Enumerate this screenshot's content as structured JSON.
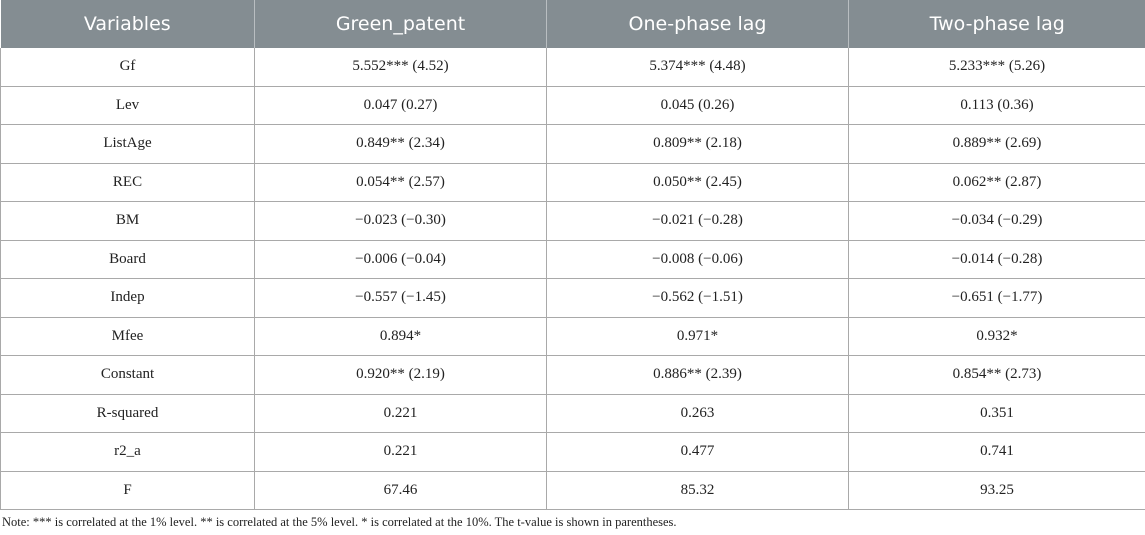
{
  "table": {
    "headers": [
      "Variables",
      "Green_patent",
      "One-phase lag",
      "Two-phase lag"
    ],
    "rows": [
      [
        "Gf",
        "5.552*** (4.52)",
        "5.374*** (4.48)",
        "5.233*** (5.26)"
      ],
      [
        "Lev",
        "0.047 (0.27)",
        "0.045 (0.26)",
        "0.113 (0.36)"
      ],
      [
        "ListAge",
        "0.849** (2.34)",
        "0.809** (2.18)",
        "0.889** (2.69)"
      ],
      [
        "REC",
        "0.054** (2.57)",
        "0.050** (2.45)",
        "0.062** (2.87)"
      ],
      [
        "BM",
        "−0.023 (−0.30)",
        "−0.021 (−0.28)",
        "−0.034 (−0.29)"
      ],
      [
        "Board",
        "−0.006 (−0.04)",
        "−0.008 (−0.06)",
        "−0.014 (−0.28)"
      ],
      [
        "Indep",
        "−0.557 (−1.45)",
        "−0.562 (−1.51)",
        "−0.651 (−1.77)"
      ],
      [
        "Mfee",
        "0.894*",
        "0.971*",
        "0.932*"
      ],
      [
        "Constant",
        "0.920** (2.19)",
        "0.886** (2.39)",
        "0.854** (2.73)"
      ],
      [
        "R-squared",
        "0.221",
        "0.263",
        "0.351"
      ],
      [
        "r2_a",
        "0.221",
        "0.477",
        "0.741"
      ],
      [
        "F",
        "67.46",
        "85.32",
        "93.25"
      ]
    ]
  },
  "note": "Note: *** is correlated at the 1% level. ** is correlated at the 5% level. * is correlated at the 10%. The t-value is shown in parentheses."
}
